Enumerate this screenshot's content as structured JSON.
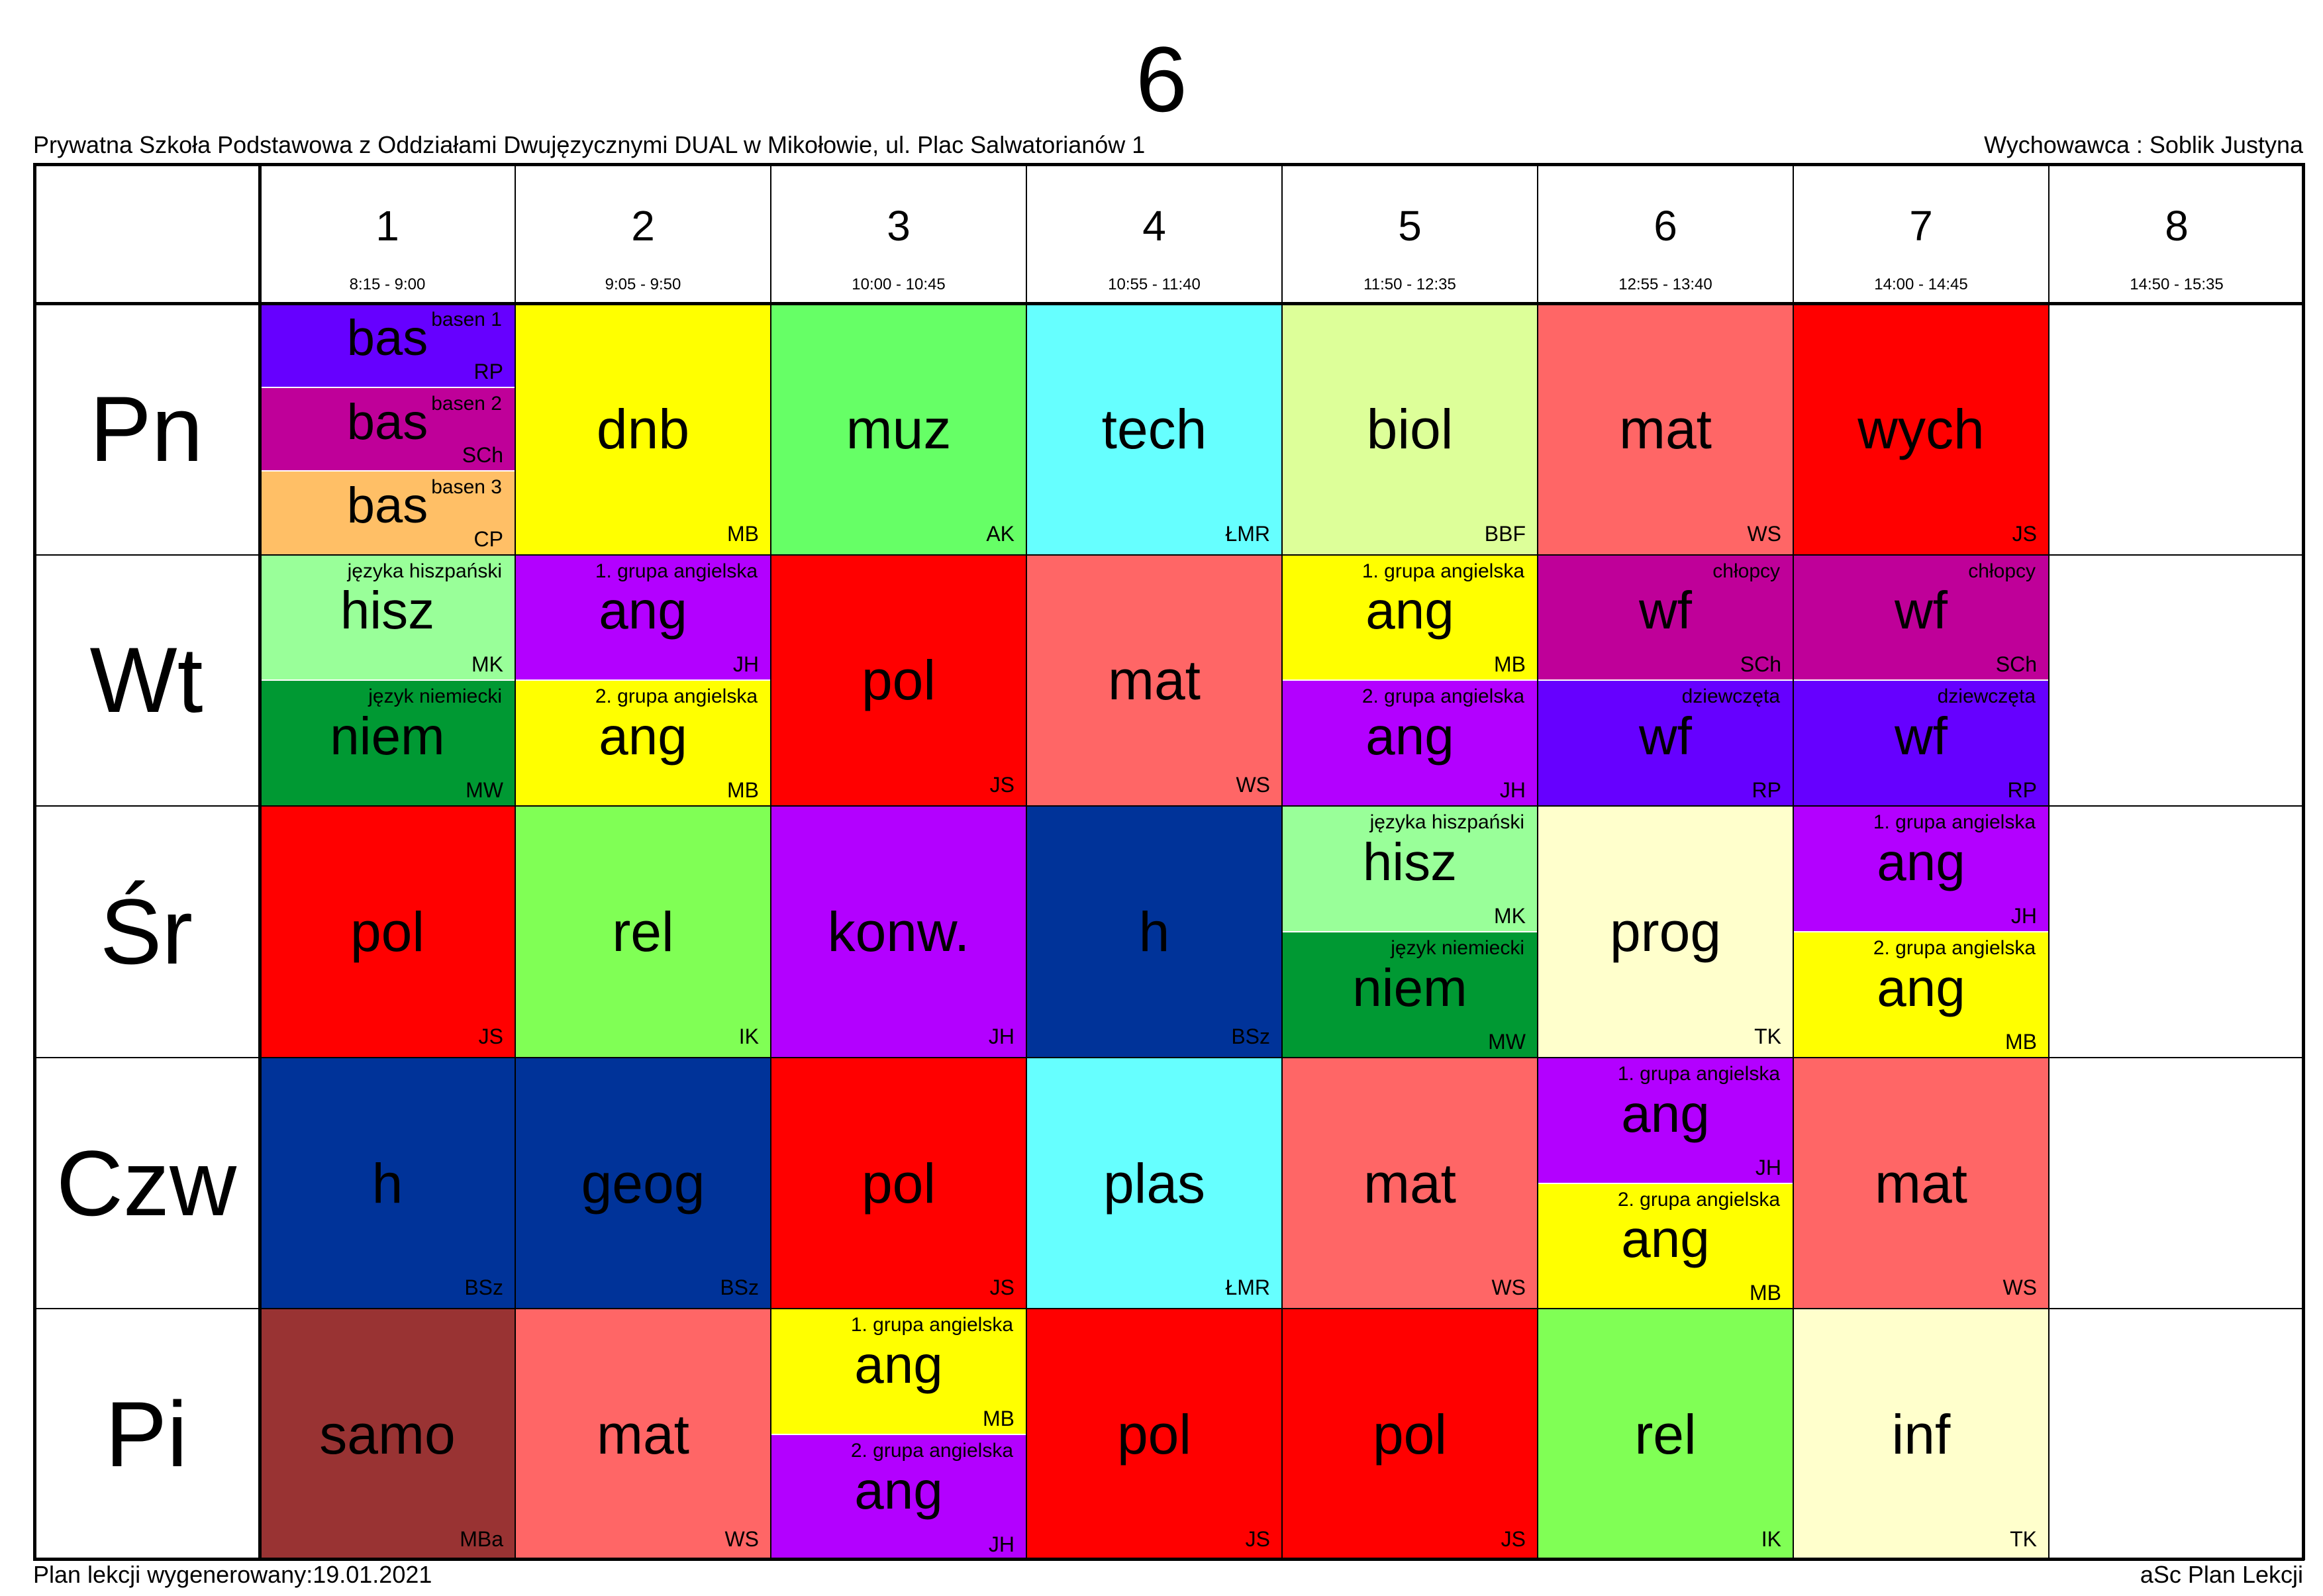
{
  "header": {
    "class_name": "6",
    "school": "Prywatna Szkoła Podstawowa z Oddziałami Dwujęzycznymi DUAL w Mikołowie, ul. Plac Salwatorianów 1",
    "homeroom_teacher": "Wychowawca : Soblik Justyna"
  },
  "footer": {
    "generated": "Plan lekcji wygenerowany:19.01.2021",
    "software": "aSc Plan Lekcji"
  },
  "periods": [
    {
      "num": "1",
      "time": "8:15 - 9:00"
    },
    {
      "num": "2",
      "time": "9:05 - 9:50"
    },
    {
      "num": "3",
      "time": "10:00 - 10:45"
    },
    {
      "num": "4",
      "time": "10:55 - 11:40"
    },
    {
      "num": "5",
      "time": "11:50 - 12:35"
    },
    {
      "num": "6",
      "time": "12:55 - 13:40"
    },
    {
      "num": "7",
      "time": "14:00 - 14:45"
    },
    {
      "num": "8",
      "time": "14:50 - 15:35"
    }
  ],
  "days": [
    "Pn",
    "Wt",
    "Śr",
    "Czw",
    "Pi"
  ],
  "lessons": [
    {
      "day": 0,
      "period": 0,
      "entries": [
        {
          "subject": "bas",
          "group": "basen 1",
          "teacher": "RP",
          "color": "#6600ff"
        },
        {
          "subject": "bas",
          "group": "basen 2",
          "teacher": "SCh",
          "color": "#bf0099"
        },
        {
          "subject": "bas",
          "group": "basen 3",
          "teacher": "CP",
          "color": "#ffbf66"
        }
      ]
    },
    {
      "day": 0,
      "period": 1,
      "entries": [
        {
          "subject": "dnb",
          "group": "",
          "teacher": "MB",
          "color": "#ffff00"
        }
      ]
    },
    {
      "day": 0,
      "period": 2,
      "entries": [
        {
          "subject": "muz",
          "group": "",
          "teacher": "AK",
          "color": "#66ff66"
        }
      ]
    },
    {
      "day": 0,
      "period": 3,
      "entries": [
        {
          "subject": "tech",
          "group": "",
          "teacher": "ŁMR",
          "color": "#66ffff"
        }
      ]
    },
    {
      "day": 0,
      "period": 4,
      "entries": [
        {
          "subject": "biol",
          "group": "",
          "teacher": "BBF",
          "color": "#ddff99"
        }
      ]
    },
    {
      "day": 0,
      "period": 5,
      "entries": [
        {
          "subject": "mat",
          "group": "",
          "teacher": "WS",
          "color": "#ff6666"
        }
      ]
    },
    {
      "day": 0,
      "period": 6,
      "entries": [
        {
          "subject": "wych",
          "group": "",
          "teacher": "JS",
          "color": "#ff0000"
        }
      ]
    },
    {
      "day": 1,
      "period": 0,
      "entries": [
        {
          "subject": "hisz",
          "group": "języka hiszpański",
          "teacher": "MK",
          "color": "#99ff99"
        },
        {
          "subject": "niem",
          "group": "język niemiecki",
          "teacher": "MW",
          "color": "#009933"
        }
      ]
    },
    {
      "day": 1,
      "period": 1,
      "entries": [
        {
          "subject": "ang",
          "group": "1. grupa angielska",
          "teacher": "JH",
          "color": "#b300ff"
        },
        {
          "subject": "ang",
          "group": "2. grupa angielska",
          "teacher": "MB",
          "color": "#ffff00"
        }
      ]
    },
    {
      "day": 1,
      "period": 2,
      "entries": [
        {
          "subject": "pol",
          "group": "",
          "teacher": "JS",
          "color": "#ff0000"
        }
      ]
    },
    {
      "day": 1,
      "period": 3,
      "entries": [
        {
          "subject": "mat",
          "group": "",
          "teacher": "WS",
          "color": "#ff6666"
        }
      ]
    },
    {
      "day": 1,
      "period": 4,
      "entries": [
        {
          "subject": "ang",
          "group": "1. grupa angielska",
          "teacher": "MB",
          "color": "#ffff00"
        },
        {
          "subject": "ang",
          "group": "2. grupa angielska",
          "teacher": "JH",
          "color": "#b300ff"
        }
      ]
    },
    {
      "day": 1,
      "period": 5,
      "entries": [
        {
          "subject": "wf",
          "group": "chłopcy",
          "teacher": "SCh",
          "color": "#bf0099"
        },
        {
          "subject": "wf",
          "group": "dziewczęta",
          "teacher": "RP",
          "color": "#6600ff"
        }
      ]
    },
    {
      "day": 1,
      "period": 6,
      "entries": [
        {
          "subject": "wf",
          "group": "chłopcy",
          "teacher": "SCh",
          "color": "#bf0099"
        },
        {
          "subject": "wf",
          "group": "dziewczęta",
          "teacher": "RP",
          "color": "#6600ff"
        }
      ]
    },
    {
      "day": 2,
      "period": 0,
      "entries": [
        {
          "subject": "pol",
          "group": "",
          "teacher": "JS",
          "color": "#ff0000"
        }
      ]
    },
    {
      "day": 2,
      "period": 1,
      "entries": [
        {
          "subject": "rel",
          "group": "",
          "teacher": "IK",
          "color": "#80ff55"
        }
      ]
    },
    {
      "day": 2,
      "period": 2,
      "entries": [
        {
          "subject": "konw.",
          "group": "",
          "teacher": "JH",
          "color": "#b300ff"
        }
      ]
    },
    {
      "day": 2,
      "period": 3,
      "entries": [
        {
          "subject": "h",
          "group": "",
          "teacher": "BSz",
          "color": "#003399"
        }
      ]
    },
    {
      "day": 2,
      "period": 4,
      "entries": [
        {
          "subject": "hisz",
          "group": "języka hiszpański",
          "teacher": "MK",
          "color": "#99ff99"
        },
        {
          "subject": "niem",
          "group": "język niemiecki",
          "teacher": "MW",
          "color": "#009933"
        }
      ]
    },
    {
      "day": 2,
      "period": 5,
      "entries": [
        {
          "subject": "prog",
          "group": "",
          "teacher": "TK",
          "color": "#ffffcc"
        }
      ]
    },
    {
      "day": 2,
      "period": 6,
      "entries": [
        {
          "subject": "ang",
          "group": "1. grupa angielska",
          "teacher": "JH",
          "color": "#b300ff"
        },
        {
          "subject": "ang",
          "group": "2. grupa angielska",
          "teacher": "MB",
          "color": "#ffff00"
        }
      ]
    },
    {
      "day": 3,
      "period": 0,
      "entries": [
        {
          "subject": "h",
          "group": "",
          "teacher": "BSz",
          "color": "#003399"
        }
      ]
    },
    {
      "day": 3,
      "period": 1,
      "entries": [
        {
          "subject": "geog",
          "group": "",
          "teacher": "BSz",
          "color": "#003399"
        }
      ]
    },
    {
      "day": 3,
      "period": 2,
      "entries": [
        {
          "subject": "pol",
          "group": "",
          "teacher": "JS",
          "color": "#ff0000"
        }
      ]
    },
    {
      "day": 3,
      "period": 3,
      "entries": [
        {
          "subject": "plas",
          "group": "",
          "teacher": "ŁMR",
          "color": "#66ffff"
        }
      ]
    },
    {
      "day": 3,
      "period": 4,
      "entries": [
        {
          "subject": "mat",
          "group": "",
          "teacher": "WS",
          "color": "#ff6666"
        }
      ]
    },
    {
      "day": 3,
      "period": 5,
      "entries": [
        {
          "subject": "ang",
          "group": "1. grupa angielska",
          "teacher": "JH",
          "color": "#b300ff"
        },
        {
          "subject": "ang",
          "group": "2. grupa angielska",
          "teacher": "MB",
          "color": "#ffff00"
        }
      ]
    },
    {
      "day": 3,
      "period": 6,
      "entries": [
        {
          "subject": "mat",
          "group": "",
          "teacher": "WS",
          "color": "#ff6666"
        }
      ]
    },
    {
      "day": 4,
      "period": 0,
      "entries": [
        {
          "subject": "samo",
          "group": "",
          "teacher": "MBa",
          "color": "#993333"
        }
      ]
    },
    {
      "day": 4,
      "period": 1,
      "entries": [
        {
          "subject": "mat",
          "group": "",
          "teacher": "WS",
          "color": "#ff6666"
        }
      ]
    },
    {
      "day": 4,
      "period": 2,
      "entries": [
        {
          "subject": "ang",
          "group": "1. grupa angielska",
          "teacher": "MB",
          "color": "#ffff00"
        },
        {
          "subject": "ang",
          "group": "2. grupa angielska",
          "teacher": "JH",
          "color": "#b300ff"
        }
      ]
    },
    {
      "day": 4,
      "period": 3,
      "entries": [
        {
          "subject": "pol",
          "group": "",
          "teacher": "JS",
          "color": "#ff0000"
        }
      ]
    },
    {
      "day": 4,
      "period": 4,
      "entries": [
        {
          "subject": "pol",
          "group": "",
          "teacher": "JS",
          "color": "#ff0000"
        }
      ]
    },
    {
      "day": 4,
      "period": 5,
      "entries": [
        {
          "subject": "rel",
          "group": "",
          "teacher": "IK",
          "color": "#80ff55"
        }
      ]
    },
    {
      "day": 4,
      "period": 6,
      "entries": [
        {
          "subject": "inf",
          "group": "",
          "teacher": "TK",
          "color": "#ffffcc"
        }
      ]
    }
  ]
}
